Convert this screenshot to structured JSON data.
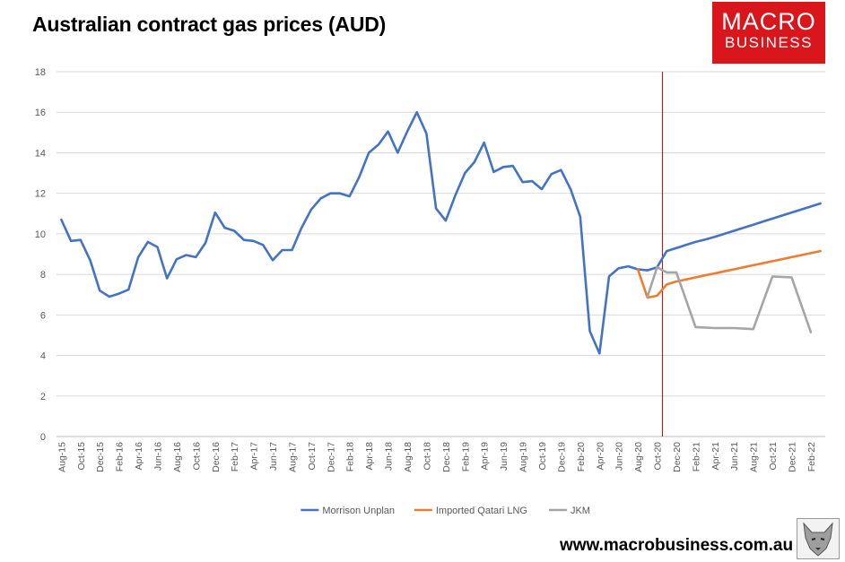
{
  "title": "Australian contract gas prices (AUD)",
  "logo": {
    "line1": "MACRO",
    "line2": "BUSINESS"
  },
  "footer": {
    "url": "www.macrobusiness.com.au"
  },
  "colors": {
    "morrison": "#4472c4",
    "qatari": "#ed7d31",
    "jkm": "#a5a5a5",
    "marker": "#c00000",
    "grid": "#d9d9d9",
    "logo_bg": "#d8161c"
  },
  "chart_data": {
    "type": "line",
    "title": "Australian contract gas prices (AUD)",
    "ylim": [
      0,
      18
    ],
    "yticks": [
      0,
      2,
      4,
      6,
      8,
      10,
      12,
      14,
      16,
      18
    ],
    "grid": "horizontal",
    "legend_position": "bottom",
    "x": [
      "Aug-15",
      "Sep-15",
      "Oct-15",
      "Nov-15",
      "Dec-15",
      "Jan-16",
      "Feb-16",
      "Mar-16",
      "Apr-16",
      "May-16",
      "Jun-16",
      "Jul-16",
      "Aug-16",
      "Sep-16",
      "Oct-16",
      "Nov-16",
      "Dec-16",
      "Jan-17",
      "Feb-17",
      "Mar-17",
      "Apr-17",
      "May-17",
      "Jun-17",
      "Jul-17",
      "Aug-17",
      "Sep-17",
      "Oct-17",
      "Nov-17",
      "Dec-17",
      "Jan-18",
      "Feb-18",
      "Mar-18",
      "Apr-18",
      "May-18",
      "Jun-18",
      "Jul-18",
      "Aug-18",
      "Sep-18",
      "Oct-18",
      "Nov-18",
      "Dec-18",
      "Jan-19",
      "Feb-19",
      "Mar-19",
      "Apr-19",
      "May-19",
      "Jun-19",
      "Jul-19",
      "Aug-19",
      "Sep-19",
      "Oct-19",
      "Nov-19",
      "Dec-19",
      "Jan-20",
      "Feb-20",
      "Mar-20",
      "Apr-20",
      "May-20",
      "Jun-20",
      "Jul-20",
      "Aug-20",
      "Sep-20",
      "Oct-20",
      "Nov-20",
      "Dec-20",
      "Jan-21",
      "Feb-21",
      "Mar-21",
      "Apr-21",
      "May-21",
      "Jun-21",
      "Jul-21",
      "Aug-21",
      "Sep-21",
      "Oct-21",
      "Nov-21",
      "Dec-21",
      "Jan-22",
      "Feb-22",
      "Mar-22"
    ],
    "tick_labels": [
      "Aug-15",
      "Oct-15",
      "Dec-15",
      "Feb-16",
      "Apr-16",
      "Jun-16",
      "Aug-16",
      "Oct-16",
      "Dec-16",
      "Feb-17",
      "Apr-17",
      "Jun-17",
      "Aug-17",
      "Oct-17",
      "Dec-17",
      "Feb-18",
      "Apr-18",
      "Jun-18",
      "Aug-18",
      "Oct-18",
      "Dec-18",
      "Feb-19",
      "Apr-19",
      "Jun-19",
      "Aug-19",
      "Oct-19",
      "Dec-19",
      "Feb-20",
      "Apr-20",
      "Jun-20",
      "Aug-20",
      "Oct-20",
      "Dec-20",
      "Feb-21",
      "Apr-21",
      "Jun-21",
      "Aug-21",
      "Oct-21",
      "Dec-21",
      "Feb-22"
    ],
    "vertical_marker": "Nov-20",
    "series": [
      {
        "name": "Morrison Unplan",
        "color": "#4472c4",
        "values": [
          10.7,
          9.65,
          9.7,
          8.7,
          7.2,
          6.9,
          7.05,
          7.25,
          8.85,
          9.6,
          9.35,
          7.8,
          8.75,
          8.95,
          8.85,
          9.55,
          11.05,
          10.3,
          10.15,
          9.7,
          9.65,
          9.45,
          8.7,
          9.2,
          9.2,
          10.3,
          11.2,
          11.75,
          12.0,
          12.0,
          11.85,
          12.8,
          14.0,
          14.4,
          15.05,
          14.0,
          15.05,
          16.0,
          14.95,
          11.25,
          10.65,
          11.9,
          13.0,
          13.55,
          14.5,
          13.05,
          13.3,
          13.35,
          12.55,
          12.6,
          12.2,
          12.95,
          13.15,
          12.2,
          10.85,
          5.2,
          4.1,
          7.9,
          8.3,
          8.4,
          8.25,
          8.2,
          8.35,
          9.15,
          9.3,
          9.45,
          9.6,
          9.72,
          9.85,
          10.0,
          10.15,
          10.3,
          10.45,
          10.6,
          10.75,
          10.9,
          11.05,
          11.2,
          11.35,
          11.5
        ]
      },
      {
        "name": "Imported Qatari LNG",
        "color": "#ed7d31",
        "values": [
          null,
          null,
          null,
          null,
          null,
          null,
          null,
          null,
          null,
          null,
          null,
          null,
          null,
          null,
          null,
          null,
          null,
          null,
          null,
          null,
          null,
          null,
          null,
          null,
          null,
          null,
          null,
          null,
          null,
          null,
          null,
          null,
          null,
          null,
          null,
          null,
          null,
          null,
          null,
          null,
          null,
          null,
          null,
          null,
          null,
          null,
          null,
          null,
          null,
          null,
          null,
          null,
          null,
          null,
          null,
          null,
          null,
          null,
          null,
          null,
          8.25,
          6.85,
          6.95,
          7.5,
          7.65,
          7.75,
          7.85,
          7.95,
          8.05,
          8.15,
          8.25,
          8.35,
          8.45,
          8.55,
          8.65,
          8.75,
          8.85,
          8.95,
          9.05,
          9.15
        ]
      },
      {
        "name": "JKM",
        "color": "#a5a5a5",
        "values": [
          null,
          null,
          null,
          null,
          null,
          null,
          null,
          null,
          null,
          null,
          null,
          null,
          null,
          null,
          null,
          null,
          null,
          null,
          null,
          null,
          null,
          null,
          null,
          null,
          null,
          null,
          null,
          null,
          null,
          null,
          null,
          null,
          null,
          null,
          null,
          null,
          null,
          null,
          null,
          null,
          null,
          null,
          null,
          null,
          null,
          null,
          null,
          null,
          null,
          null,
          null,
          null,
          null,
          null,
          null,
          null,
          null,
          null,
          null,
          null,
          null,
          6.9,
          8.35,
          8.1,
          8.1,
          null,
          5.4,
          null,
          5.35,
          null,
          5.35,
          null,
          5.3,
          null,
          7.9,
          null,
          7.85,
          null,
          5.15,
          null
        ]
      }
    ]
  }
}
